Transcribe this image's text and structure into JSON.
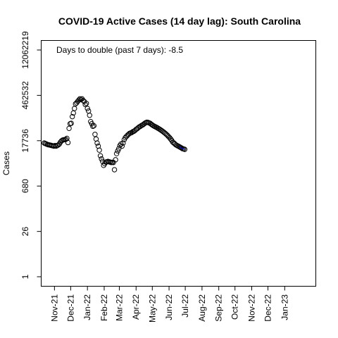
{
  "chart_data": {
    "type": "scatter",
    "title": "COVID-19 Active Cases (14 day lag): South Carolina",
    "xlabel": "",
    "ylabel": "Cases",
    "y_scale": "log",
    "y_ticks": [
      1,
      26,
      680,
      17736,
      462532,
      12062219
    ],
    "ylim": [
      1,
      12062219
    ],
    "x_ticks": [
      "2021-11-01",
      "2021-12-01",
      "2022-01-01",
      "2022-02-01",
      "2022-03-01",
      "2022-04-01",
      "2022-05-01",
      "2022-06-01",
      "2022-07-01",
      "2022-08-01",
      "2022-09-01",
      "2022-10-01",
      "2022-11-01",
      "2022-12-01",
      "2023-01-01"
    ],
    "x_tick_labels": [
      "Nov-21",
      "Dec-21",
      "Jan-22",
      "Feb-22",
      "Mar-22",
      "Apr-22",
      "May-22",
      "Jun-22",
      "Jul-22",
      "Aug-22",
      "Sep-22",
      "Oct-22",
      "Nov-22",
      "Dec-22",
      "Jan-23"
    ],
    "xlim": [
      "2021-10-12",
      "2023-02-23"
    ],
    "annotation": "Days to double (past 7 days): -8.5",
    "grid": false,
    "marker": "open circle",
    "trend_line_color": "#0000cc",
    "points": [
      [
        "2021-10-13",
        15000
      ],
      [
        "2021-10-15",
        14500
      ],
      [
        "2021-10-17",
        14000
      ],
      [
        "2021-10-19",
        13500
      ],
      [
        "2021-10-21",
        13200
      ],
      [
        "2021-10-23",
        13000
      ],
      [
        "2021-10-25",
        12800
      ],
      [
        "2021-10-27",
        12500
      ],
      [
        "2021-10-29",
        12300
      ],
      [
        "2021-10-31",
        12000
      ],
      [
        "2021-11-02",
        12500
      ],
      [
        "2021-11-04",
        12000
      ],
      [
        "2021-11-06",
        12500
      ],
      [
        "2021-11-08",
        13000
      ],
      [
        "2021-11-10",
        14000
      ],
      [
        "2021-11-12",
        16000
      ],
      [
        "2021-11-14",
        17500
      ],
      [
        "2021-11-16",
        18500
      ],
      [
        "2021-11-18",
        19000
      ],
      [
        "2021-11-20",
        19000
      ],
      [
        "2021-11-22",
        19500
      ],
      [
        "2021-11-24",
        21000
      ],
      [
        "2021-11-26",
        15500
      ],
      [
        "2021-11-28",
        43000
      ],
      [
        "2021-11-30",
        60000
      ],
      [
        "2021-12-02",
        62000
      ],
      [
        "2021-12-04",
        100000
      ],
      [
        "2021-12-06",
        130000
      ],
      [
        "2021-12-08",
        180000
      ],
      [
        "2021-12-10",
        250000
      ],
      [
        "2021-12-12",
        270000
      ],
      [
        "2021-12-14",
        300000
      ],
      [
        "2021-12-16",
        330000
      ],
      [
        "2021-12-18",
        360000
      ],
      [
        "2021-12-20",
        340000
      ],
      [
        "2021-12-22",
        360000
      ],
      [
        "2021-12-24",
        320000
      ],
      [
        "2021-12-26",
        300000
      ],
      [
        "2021-12-28",
        240000
      ],
      [
        "2021-12-30",
        260000
      ],
      [
        "2022-01-01",
        180000
      ],
      [
        "2022-01-03",
        150000
      ],
      [
        "2022-01-05",
        110000
      ],
      [
        "2022-01-07",
        70000
      ],
      [
        "2022-01-09",
        60000
      ],
      [
        "2022-01-11",
        50000
      ],
      [
        "2022-01-13",
        52000
      ],
      [
        "2022-01-15",
        28000
      ],
      [
        "2022-01-17",
        20000
      ],
      [
        "2022-01-19",
        15000
      ],
      [
        "2022-01-21",
        12000
      ],
      [
        "2022-01-23",
        9000
      ],
      [
        "2022-01-25",
        6000
      ],
      [
        "2022-01-27",
        4800
      ],
      [
        "2022-01-29",
        4000
      ],
      [
        "2022-01-31",
        3000
      ],
      [
        "2022-02-02",
        3400
      ],
      [
        "2022-02-04",
        3800
      ],
      [
        "2022-02-06",
        3900
      ],
      [
        "2022-02-08",
        4000
      ],
      [
        "2022-02-10",
        3900
      ],
      [
        "2022-02-12",
        3800
      ],
      [
        "2022-02-14",
        3700
      ],
      [
        "2022-02-16",
        3750
      ],
      [
        "2022-02-18",
        3700
      ],
      [
        "2022-02-20",
        2200
      ],
      [
        "2022-02-22",
        4500
      ],
      [
        "2022-02-24",
        7000
      ],
      [
        "2022-02-26",
        8500
      ],
      [
        "2022-02-28",
        10000
      ],
      [
        "2022-03-02",
        12500
      ],
      [
        "2022-03-04",
        14000
      ],
      [
        "2022-03-06",
        12000
      ],
      [
        "2022-03-08",
        15000
      ],
      [
        "2022-03-10",
        19000
      ],
      [
        "2022-03-12",
        22000
      ],
      [
        "2022-03-14",
        24000
      ],
      [
        "2022-03-16",
        26000
      ],
      [
        "2022-03-18",
        28000
      ],
      [
        "2022-03-20",
        30000
      ],
      [
        "2022-03-22",
        31000
      ],
      [
        "2022-03-24",
        32000
      ],
      [
        "2022-03-26",
        34000
      ],
      [
        "2022-03-28",
        35000
      ],
      [
        "2022-03-30",
        37000
      ],
      [
        "2022-04-01",
        40000
      ],
      [
        "2022-04-03",
        42000
      ],
      [
        "2022-04-05",
        45000
      ],
      [
        "2022-04-07",
        48000
      ],
      [
        "2022-04-09",
        50000
      ],
      [
        "2022-04-11",
        53000
      ],
      [
        "2022-04-13",
        55000
      ],
      [
        "2022-04-15",
        58000
      ],
      [
        "2022-04-17",
        62000
      ],
      [
        "2022-04-19",
        65000
      ],
      [
        "2022-04-21",
        67000
      ],
      [
        "2022-04-23",
        66000
      ],
      [
        "2022-04-25",
        64000
      ],
      [
        "2022-04-27",
        62000
      ],
      [
        "2022-04-29",
        58000
      ],
      [
        "2022-05-01",
        55000
      ],
      [
        "2022-05-03",
        52000
      ],
      [
        "2022-05-05",
        50000
      ],
      [
        "2022-05-07",
        48000
      ],
      [
        "2022-05-09",
        46000
      ],
      [
        "2022-05-11",
        44000
      ],
      [
        "2022-05-13",
        42000
      ],
      [
        "2022-05-15",
        40000
      ],
      [
        "2022-05-17",
        38000
      ],
      [
        "2022-05-19",
        36000
      ],
      [
        "2022-05-21",
        34000
      ],
      [
        "2022-05-23",
        32000
      ],
      [
        "2022-05-25",
        30000
      ],
      [
        "2022-05-27",
        28000
      ],
      [
        "2022-05-29",
        26000
      ],
      [
        "2022-05-31",
        24000
      ],
      [
        "2022-06-02",
        22000
      ],
      [
        "2022-06-04",
        20000
      ],
      [
        "2022-06-06",
        18000
      ],
      [
        "2022-06-08",
        16000
      ],
      [
        "2022-06-10",
        15000
      ],
      [
        "2022-06-12",
        14000
      ],
      [
        "2022-06-14",
        13000
      ],
      [
        "2022-06-16",
        12500
      ],
      [
        "2022-06-18",
        12000
      ],
      [
        "2022-06-20",
        11500
      ],
      [
        "2022-06-22",
        11000
      ],
      [
        "2022-06-24",
        10500
      ],
      [
        "2022-06-26",
        10000
      ],
      [
        "2022-06-28",
        9800
      ],
      [
        "2022-06-30",
        9500
      ]
    ]
  }
}
